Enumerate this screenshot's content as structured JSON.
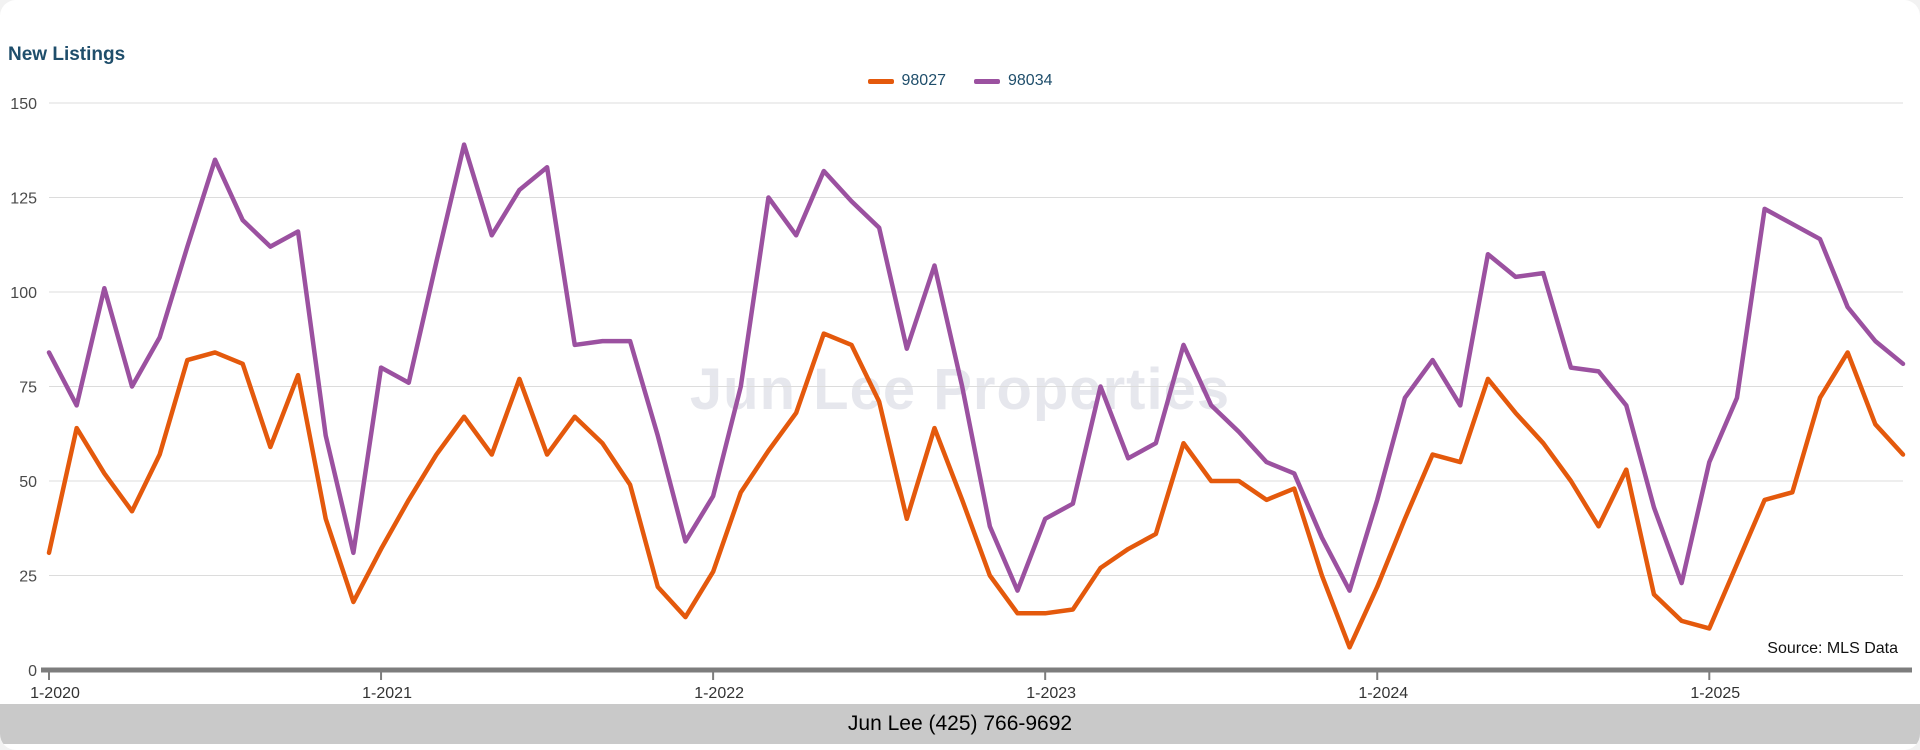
{
  "page": {
    "title": "New Listings",
    "watermark": "Jun Lee Properties",
    "source": "Source: MLS Data",
    "footer": "Jun Lee (425) 766-9692"
  },
  "colors": {
    "title": "#1F4E6B",
    "grid": "#dcdcdc",
    "axis": "#7d7d7d",
    "footer_bg": "#c9c9c9"
  },
  "chart_data": {
    "type": "line",
    "title": "New Listings",
    "x_unit": "month",
    "x_tick_labels": [
      "1-2020",
      "1-2021",
      "1-2022",
      "1-2023",
      "1-2024",
      "1-2025"
    ],
    "x_tick_indices": [
      0,
      12,
      24,
      36,
      48,
      60
    ],
    "x_range_note": "monthly points from 1-2020 through 8-2025",
    "ylim": [
      0,
      150
    ],
    "y_ticks": [
      0,
      25,
      50,
      75,
      100,
      125,
      150
    ],
    "grid": true,
    "legend_position": "top-center",
    "source": "Source: MLS Data",
    "series": [
      {
        "name": "98027",
        "color": "#E4590C",
        "values": [
          31,
          64,
          52,
          42,
          57,
          82,
          84,
          81,
          59,
          78,
          40,
          18,
          32,
          45,
          57,
          67,
          57,
          77,
          57,
          67,
          60,
          49,
          22,
          14,
          26,
          47,
          58,
          68,
          89,
          86,
          71,
          40,
          64,
          45,
          25,
          15,
          15,
          16,
          27,
          32,
          36,
          60,
          50,
          50,
          45,
          48,
          25,
          6,
          22,
          40,
          57,
          55,
          77,
          68,
          60,
          50,
          38,
          53,
          20,
          13,
          11,
          28,
          45,
          47,
          72,
          84,
          65,
          57
        ]
      },
      {
        "name": "98034",
        "color": "#9B51A0",
        "values": [
          84,
          70,
          101,
          75,
          88,
          112,
          135,
          119,
          112,
          116,
          62,
          31,
          80,
          76,
          108,
          139,
          115,
          127,
          133,
          86,
          87,
          87,
          62,
          34,
          46,
          75,
          125,
          115,
          132,
          124,
          117,
          85,
          107,
          75,
          38,
          21,
          40,
          44,
          75,
          56,
          60,
          86,
          70,
          63,
          55,
          52,
          35,
          21,
          45,
          72,
          82,
          70,
          110,
          104,
          105,
          80,
          79,
          70,
          43,
          23,
          55,
          72,
          122,
          118,
          114,
          96,
          87,
          81
        ]
      }
    ]
  }
}
